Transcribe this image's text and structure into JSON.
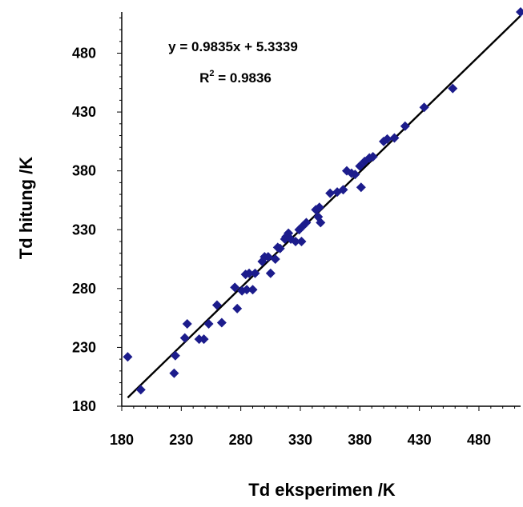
{
  "chart_data": {
    "type": "scatter",
    "xlabel": "Td eksperimen /K",
    "ylabel": "Td hitung /K",
    "xlim": [
      180,
      515
    ],
    "ylim": [
      180,
      515
    ],
    "major_ticks": [
      180,
      230,
      280,
      330,
      380,
      430,
      480
    ],
    "minor_tick_step": 10,
    "grid": false,
    "marker": "diamond",
    "marker_color": "#1c1c8c",
    "trendline": {
      "slope": 0.9835,
      "intercept": 5.3339,
      "x_range": [
        185,
        515
      ],
      "color": "#000000"
    },
    "annotations": {
      "equation": "y = 0.9835x + 5.3339",
      "r2_prefix": "R",
      "r2_exp": "2",
      "r2_suffix": " = 0.9836"
    },
    "points": [
      [
        185,
        222
      ],
      [
        196,
        194
      ],
      [
        224,
        208
      ],
      [
        225,
        223
      ],
      [
        233,
        238
      ],
      [
        235,
        250
      ],
      [
        245,
        237
      ],
      [
        249,
        237
      ],
      [
        253,
        250
      ],
      [
        260,
        266
      ],
      [
        264,
        251
      ],
      [
        275,
        281
      ],
      [
        277,
        263
      ],
      [
        281,
        278
      ],
      [
        284,
        292
      ],
      [
        285,
        279
      ],
      [
        287,
        293
      ],
      [
        290,
        279
      ],
      [
        292,
        293
      ],
      [
        298,
        303
      ],
      [
        300,
        307
      ],
      [
        303,
        307
      ],
      [
        305,
        293
      ],
      [
        309,
        305
      ],
      [
        311,
        315
      ],
      [
        313,
        314
      ],
      [
        317,
        322
      ],
      [
        318,
        324
      ],
      [
        320,
        327
      ],
      [
        322,
        322
      ],
      [
        326,
        320
      ],
      [
        329,
        330
      ],
      [
        331,
        320
      ],
      [
        332,
        333
      ],
      [
        335,
        336
      ],
      [
        343,
        347
      ],
      [
        345,
        341
      ],
      [
        346,
        349
      ],
      [
        347,
        336
      ],
      [
        355,
        361
      ],
      [
        361,
        362
      ],
      [
        366,
        364
      ],
      [
        369,
        380
      ],
      [
        373,
        378
      ],
      [
        376,
        377
      ],
      [
        380,
        384
      ],
      [
        381,
        366
      ],
      [
        384,
        388
      ],
      [
        388,
        391
      ],
      [
        391,
        392
      ],
      [
        400,
        405
      ],
      [
        403,
        407
      ],
      [
        409,
        408
      ],
      [
        418,
        418
      ],
      [
        434,
        434
      ],
      [
        458,
        450
      ],
      [
        515,
        515
      ]
    ]
  }
}
